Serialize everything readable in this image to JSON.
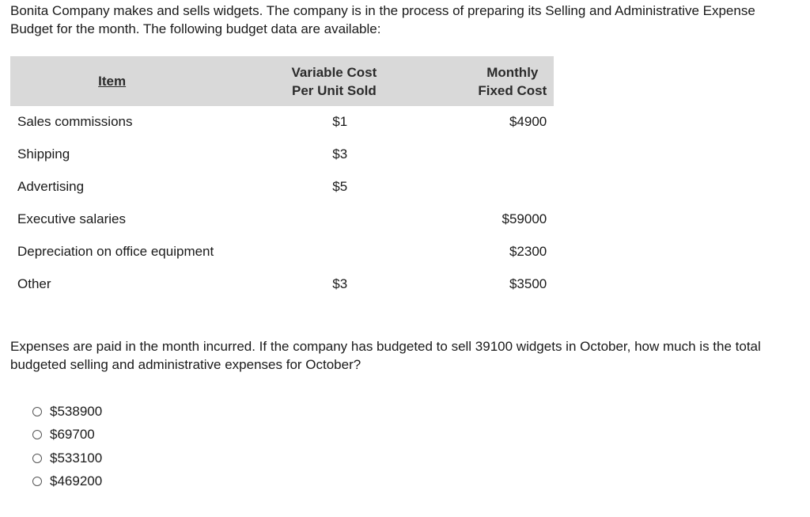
{
  "intro": "Bonita Company makes and sells widgets. The company is in the process of preparing its Selling and Administrative Expense Budget for the month. The following budget data are available:",
  "table": {
    "headers": {
      "item": "Item",
      "variable_line1": "Variable Cost",
      "variable_line2": "Per Unit Sold",
      "fixed_line1": "Monthly",
      "fixed_line2": "Fixed Cost"
    },
    "rows": [
      {
        "item": "Sales commissions",
        "variable": "$1",
        "fixed": "$4900"
      },
      {
        "item": "Shipping",
        "variable": "$3",
        "fixed": ""
      },
      {
        "item": "Advertising",
        "variable": "$5",
        "fixed": ""
      },
      {
        "item": "Executive salaries",
        "variable": "",
        "fixed": "$59000"
      },
      {
        "item": "Depreciation on office equipment",
        "variable": "",
        "fixed": "$2300"
      },
      {
        "item": "Other",
        "variable": "$3",
        "fixed": "$3500"
      }
    ]
  },
  "question": "Expenses are paid in the month incurred. If the company has budgeted to sell 39100 widgets in October, how much is the total budgeted selling and administrative expenses for October?",
  "options": [
    "$538900",
    "$69700",
    "$533100",
    "$469200"
  ]
}
